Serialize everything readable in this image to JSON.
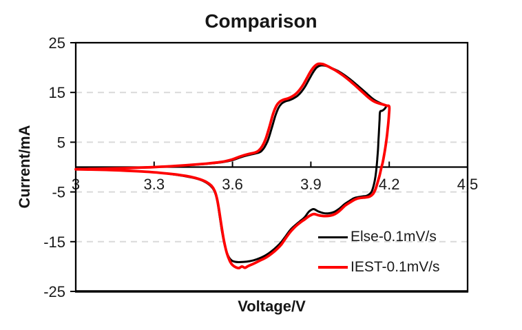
{
  "chart_data": {
    "type": "line",
    "title": "Comparison",
    "xlabel": "Voltage/V",
    "ylabel": "Current/mA",
    "xlim": [
      3,
      4.5
    ],
    "ylim": [
      -25,
      25
    ],
    "xticks": [
      {
        "v": 3,
        "label": "3"
      },
      {
        "v": 3.3,
        "label": "3.3"
      },
      {
        "v": 3.6,
        "label": "3.6"
      },
      {
        "v": 3.9,
        "label": "3.9"
      },
      {
        "v": 4.2,
        "label": "4.2"
      },
      {
        "v": 4.5,
        "label": "4.5"
      }
    ],
    "yticks": [
      {
        "v": -25,
        "label": "-25"
      },
      {
        "v": -15,
        "label": "-15"
      },
      {
        "v": -5,
        "label": "-5"
      },
      {
        "v": 5,
        "label": "5"
      },
      {
        "v": 15,
        "label": "15"
      },
      {
        "v": 25,
        "label": "25"
      }
    ],
    "grid": "horizontal-dashed",
    "grid_y": [
      -15,
      -5,
      5,
      15
    ],
    "grid_color": "#d9d9d9",
    "axis_color": "#000000",
    "tick_label_color": "#1a1a1a",
    "background": "#ffffff",
    "legend_position": "inside-bottom-right",
    "legend": [
      {
        "id": "else",
        "label": "Else-0.1mV/s",
        "color": "#000000"
      },
      {
        "id": "iest",
        "label": "IEST-0.1mV/s",
        "color": "#ff0000"
      }
    ],
    "series": [
      {
        "id": "else",
        "name": "Else-0.1mV/s",
        "color": "#000000",
        "width": 3,
        "points": [
          [
            3.0,
            -0.4
          ],
          [
            3.08,
            -0.32
          ],
          [
            3.16,
            -0.22
          ],
          [
            3.24,
            -0.1
          ],
          [
            3.31,
            0.04
          ],
          [
            3.38,
            0.22
          ],
          [
            3.45,
            0.45
          ],
          [
            3.51,
            0.7
          ],
          [
            3.56,
            0.97
          ],
          [
            3.6,
            1.4
          ],
          [
            3.63,
            1.95
          ],
          [
            3.66,
            2.4
          ],
          [
            3.69,
            2.75
          ],
          [
            3.708,
            3.1
          ],
          [
            3.722,
            3.95
          ],
          [
            3.736,
            5.45
          ],
          [
            3.75,
            7.8
          ],
          [
            3.764,
            10.3
          ],
          [
            3.776,
            11.9
          ],
          [
            3.788,
            12.75
          ],
          [
            3.802,
            13.2
          ],
          [
            3.818,
            13.45
          ],
          [
            3.833,
            13.8
          ],
          [
            3.848,
            14.3
          ],
          [
            3.863,
            15.1
          ],
          [
            3.878,
            16.2
          ],
          [
            3.893,
            17.6
          ],
          [
            3.908,
            19.0
          ],
          [
            3.922,
            20.0
          ],
          [
            3.936,
            20.4
          ],
          [
            3.952,
            20.4
          ],
          [
            3.968,
            20.15
          ],
          [
            3.986,
            19.75
          ],
          [
            4.006,
            19.25
          ],
          [
            4.03,
            18.45
          ],
          [
            4.055,
            17.45
          ],
          [
            4.08,
            16.35
          ],
          [
            4.105,
            15.2
          ],
          [
            4.125,
            14.25
          ],
          [
            4.143,
            13.5
          ],
          [
            4.16,
            13.0
          ],
          [
            4.175,
            12.65
          ],
          [
            4.188,
            12.3
          ],
          [
            4.183,
            11.75
          ],
          [
            4.174,
            11.35
          ],
          [
            4.165,
            11.1
          ],
          [
            4.163,
            9.5
          ],
          [
            4.161,
            7.5
          ],
          [
            4.159,
            5.5
          ],
          [
            4.157,
            3.5
          ],
          [
            4.154,
            1.5
          ],
          [
            4.151,
            -0.3
          ],
          [
            4.147,
            -2.0
          ],
          [
            4.141,
            -3.6
          ],
          [
            4.133,
            -4.9
          ],
          [
            4.123,
            -5.5
          ],
          [
            4.112,
            -5.8
          ],
          [
            4.098,
            -5.9
          ],
          [
            4.068,
            -6.2
          ],
          [
            4.048,
            -6.8
          ],
          [
            4.028,
            -7.5
          ],
          [
            4.008,
            -8.4
          ],
          [
            3.988,
            -9.05
          ],
          [
            3.968,
            -9.3
          ],
          [
            3.948,
            -9.25
          ],
          [
            3.928,
            -8.9
          ],
          [
            3.91,
            -8.45
          ],
          [
            3.893,
            -8.95
          ],
          [
            3.876,
            -10.1
          ],
          [
            3.858,
            -10.9
          ],
          [
            3.84,
            -11.7
          ],
          [
            3.822,
            -12.6
          ],
          [
            3.805,
            -13.8
          ],
          [
            3.788,
            -15.0
          ],
          [
            3.77,
            -16.0
          ],
          [
            3.75,
            -16.9
          ],
          [
            3.728,
            -17.7
          ],
          [
            3.705,
            -18.3
          ],
          [
            3.68,
            -18.75
          ],
          [
            3.655,
            -19.0
          ],
          [
            3.63,
            -19.1
          ],
          [
            3.61,
            -19.05
          ],
          [
            3.595,
            -18.7
          ],
          [
            3.583,
            -17.8
          ],
          [
            3.571,
            -15.9
          ],
          [
            3.56,
            -13.0
          ],
          [
            3.551,
            -9.9
          ],
          [
            3.543,
            -7.2
          ],
          [
            3.535,
            -5.4
          ],
          [
            3.525,
            -4.3
          ],
          [
            3.51,
            -3.5
          ],
          [
            3.49,
            -2.85
          ],
          [
            3.46,
            -2.3
          ],
          [
            3.42,
            -1.85
          ],
          [
            3.37,
            -1.45
          ],
          [
            3.32,
            -1.15
          ],
          [
            3.26,
            -0.9
          ],
          [
            3.19,
            -0.7
          ],
          [
            3.11,
            -0.55
          ],
          [
            3.0,
            -0.42
          ]
        ]
      },
      {
        "id": "iest",
        "name": "IEST-0.1mV/s",
        "color": "#ff0000",
        "width": 3.8,
        "points": [
          [
            3.0,
            -0.45
          ],
          [
            3.08,
            -0.36
          ],
          [
            3.16,
            -0.26
          ],
          [
            3.24,
            -0.13
          ],
          [
            3.31,
            0.02
          ],
          [
            3.38,
            0.22
          ],
          [
            3.45,
            0.48
          ],
          [
            3.51,
            0.75
          ],
          [
            3.56,
            1.05
          ],
          [
            3.6,
            1.55
          ],
          [
            3.63,
            2.15
          ],
          [
            3.66,
            2.6
          ],
          [
            3.685,
            2.9
          ],
          [
            3.7,
            3.3
          ],
          [
            3.714,
            4.2
          ],
          [
            3.728,
            5.8
          ],
          [
            3.742,
            8.2
          ],
          [
            3.756,
            10.8
          ],
          [
            3.768,
            12.3
          ],
          [
            3.78,
            13.1
          ],
          [
            3.795,
            13.55
          ],
          [
            3.81,
            13.75
          ],
          [
            3.825,
            14.1
          ],
          [
            3.84,
            14.6
          ],
          [
            3.855,
            15.4
          ],
          [
            3.87,
            16.5
          ],
          [
            3.885,
            17.9
          ],
          [
            3.9,
            19.3
          ],
          [
            3.915,
            20.3
          ],
          [
            3.928,
            20.75
          ],
          [
            3.945,
            20.7
          ],
          [
            3.962,
            20.35
          ],
          [
            3.98,
            19.85
          ],
          [
            4.0,
            19.25
          ],
          [
            4.025,
            18.35
          ],
          [
            4.05,
            17.3
          ],
          [
            4.075,
            16.15
          ],
          [
            4.1,
            14.95
          ],
          [
            4.12,
            14.0
          ],
          [
            4.14,
            13.25
          ],
          [
            4.158,
            12.85
          ],
          [
            4.175,
            12.6
          ],
          [
            4.19,
            12.35
          ],
          [
            4.2,
            12.15
          ],
          [
            4.199,
            10.5
          ],
          [
            4.196,
            8.6
          ],
          [
            4.192,
            6.6
          ],
          [
            4.187,
            4.6
          ],
          [
            4.181,
            2.6
          ],
          [
            4.175,
            0.9
          ],
          [
            4.17,
            -0.1
          ],
          [
            4.163,
            -1.7
          ],
          [
            4.155,
            -3.2
          ],
          [
            4.147,
            -4.5
          ],
          [
            4.138,
            -5.4
          ],
          [
            4.126,
            -5.9
          ],
          [
            4.11,
            -6.1
          ],
          [
            4.09,
            -6.2
          ],
          [
            4.07,
            -6.5
          ],
          [
            4.05,
            -7.1
          ],
          [
            4.03,
            -7.8
          ],
          [
            4.01,
            -8.8
          ],
          [
            3.99,
            -9.5
          ],
          [
            3.97,
            -9.8
          ],
          [
            3.95,
            -9.85
          ],
          [
            3.93,
            -9.7
          ],
          [
            3.912,
            -9.45
          ],
          [
            3.895,
            -9.8
          ],
          [
            3.877,
            -10.5
          ],
          [
            3.858,
            -11.2
          ],
          [
            3.84,
            -12.0
          ],
          [
            3.822,
            -13.0
          ],
          [
            3.805,
            -14.2
          ],
          [
            3.788,
            -15.5
          ],
          [
            3.77,
            -16.5
          ],
          [
            3.75,
            -17.4
          ],
          [
            3.728,
            -18.2
          ],
          [
            3.705,
            -18.8
          ],
          [
            3.682,
            -19.4
          ],
          [
            3.66,
            -19.9
          ],
          [
            3.648,
            -20.25
          ],
          [
            3.636,
            -20.0
          ],
          [
            3.625,
            -20.3
          ],
          [
            3.613,
            -20.15
          ],
          [
            3.6,
            -19.7
          ],
          [
            3.59,
            -18.9
          ],
          [
            3.579,
            -17.4
          ],
          [
            3.568,
            -15.0
          ],
          [
            3.558,
            -11.9
          ],
          [
            3.549,
            -8.8
          ],
          [
            3.541,
            -6.4
          ],
          [
            3.532,
            -4.8
          ],
          [
            3.52,
            -3.8
          ],
          [
            3.5,
            -3.0
          ],
          [
            3.475,
            -2.45
          ],
          [
            3.44,
            -1.95
          ],
          [
            3.4,
            -1.6
          ],
          [
            3.35,
            -1.3
          ],
          [
            3.3,
            -1.05
          ],
          [
            3.24,
            -0.85
          ],
          [
            3.17,
            -0.68
          ],
          [
            3.1,
            -0.55
          ],
          [
            3.0,
            -0.45
          ]
        ]
      }
    ]
  }
}
